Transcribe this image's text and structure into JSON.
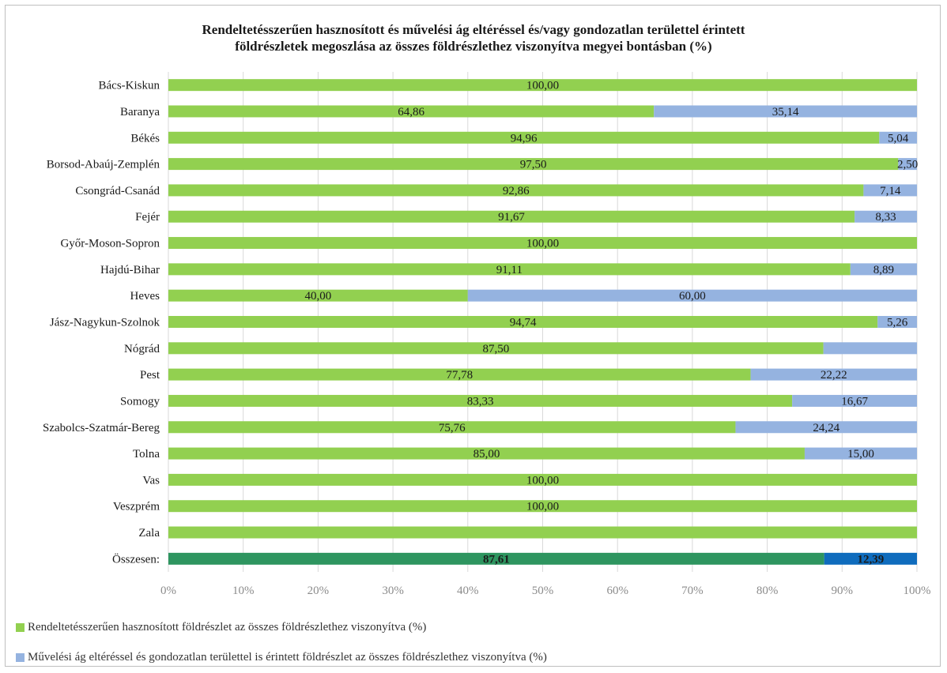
{
  "title_lines": [
    "Rendeltetésszerűen hasznosított és művelési ág eltéréssel és/vagy gondozatlan területtel érintett",
    "földrészletek megoszlása az összes földrészlethez viszonyítva megyei bontásban (%)"
  ],
  "colors": {
    "series1": "#92d050",
    "series2": "#95b3e0",
    "total1": "#2e9560",
    "total2": "#0f6cbd",
    "grid": "#d9d9d9",
    "tick": "#8c8c8c"
  },
  "chart_data": {
    "type": "bar",
    "orientation": "horizontal",
    "stacked": true,
    "categories": [
      "Bács-Kiskun",
      "Baranya",
      "Békés",
      "Borsod-Abaúj-Zemplén",
      "Csongrád-Csanád",
      "Fejér",
      "Győr-Moson-Sopron",
      "Hajdú-Bihar",
      "Heves",
      "Jász-Nagykun-Szolnok",
      "Nógrád",
      "Pest",
      "Somogy",
      "Szabolcs-Szatmár-Bereg",
      "Tolna",
      "Vas",
      "Veszprém",
      "Zala",
      "Összesen:"
    ],
    "series": [
      {
        "name": "Rendeltetésszerűen hasznosított földrészlet az összes földrészlethez viszonyítva (%)",
        "values": [
          100,
          64.86,
          94.96,
          97.5,
          92.86,
          91.67,
          100,
          91.11,
          40,
          94.74,
          87.5,
          77.78,
          83.33,
          75.76,
          85,
          100,
          100,
          100,
          87.61
        ],
        "labels": [
          "100,00",
          "64,86",
          "94,96",
          "97,50",
          "92,86",
          "91,67",
          "100,00",
          "91,11",
          "40,00",
          "94,74",
          "87,50",
          "77,78",
          "83,33",
          "75,76",
          "85,00",
          "100,00",
          "100,00",
          "",
          "87,61"
        ]
      },
      {
        "name": "Művelési ág eltéréssel és gondozatlan területtel is érintett földrészlet az összes földrészlethez viszonyítva (%)",
        "values": [
          0,
          35.14,
          5.04,
          2.5,
          7.14,
          8.33,
          0,
          8.89,
          60,
          5.26,
          12.5,
          22.22,
          16.67,
          24.24,
          15,
          0,
          0,
          0,
          12.39
        ],
        "labels": [
          "",
          "35,14",
          "5,04",
          "2,50",
          "7,14",
          "8,33",
          "",
          "8,89",
          "60,00",
          "5,26",
          "",
          "22,22",
          "16,67",
          "24,24",
          "15,00",
          "",
          "",
          "",
          "12,39"
        ]
      }
    ],
    "xlim": [
      0,
      100
    ],
    "xticks": [
      "0%",
      "10%",
      "20%",
      "30%",
      "40%",
      "50%",
      "60%",
      "70%",
      "80%",
      "90%",
      "100%"
    ],
    "grid": true,
    "legend_position": "bottom",
    "highlight_last_row": true
  }
}
